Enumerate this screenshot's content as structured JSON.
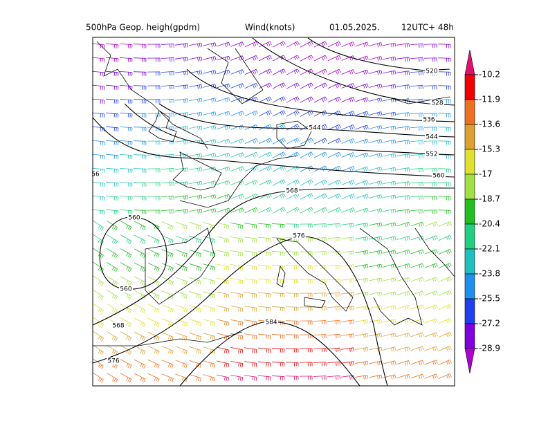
{
  "header": {
    "field": "500hPa  Geop. heigh(gpdm)",
    "wind": "Wind(knots)",
    "date": "01.05.2025.",
    "run": "12UTC+ 48h"
  },
  "contour_labels": [
    "520",
    "528",
    "536",
    "544",
    "544",
    "552",
    "560",
    "56",
    "568",
    "560",
    "560",
    "576",
    "568",
    "584",
    "576"
  ],
  "colorbar": {
    "labels": [
      "-10.2",
      "-11.9",
      "-13.6",
      "-15.3",
      "-17",
      "-18.7",
      "-20.4",
      "-22.1",
      "-23.8",
      "-25.5",
      "-27.2",
      "-28.9"
    ],
    "colors": [
      "#e0106e",
      "#f00000",
      "#f07020",
      "#e0a030",
      "#e0e030",
      "#a0e040",
      "#20c020",
      "#20d080",
      "#20c0c0",
      "#2090f0",
      "#2040f0",
      "#8000e0",
      "#b000d0"
    ]
  }
}
